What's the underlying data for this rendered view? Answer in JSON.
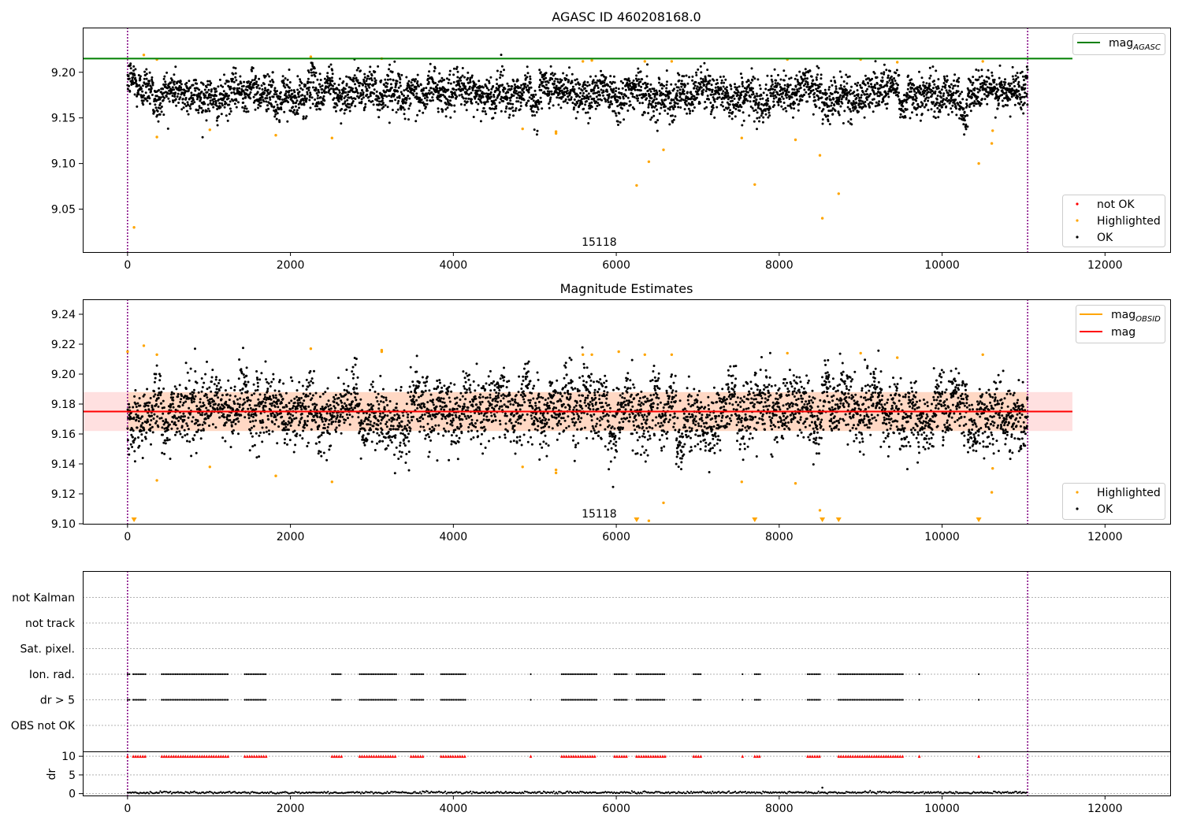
{
  "chart_data": [
    {
      "type": "scatter",
      "title": "AGASC ID 460208168.0",
      "xlim": [
        -550,
        12800
      ],
      "ylim": [
        9.003,
        9.249
      ],
      "xticks": [
        0,
        2000,
        4000,
        6000,
        8000,
        10000,
        12000
      ],
      "yticks": [
        9.05,
        9.1,
        9.15,
        9.2
      ],
      "ytick_labels": [
        "9.05",
        "9.10",
        "9.15",
        "9.20"
      ],
      "obsid_boundaries": [
        0,
        11050
      ],
      "obsid_label": {
        "text": "15118",
        "x": 5500
      },
      "reference_lines": [
        {
          "name": "mag",
          "name_sub": "AGASC",
          "value": 9.215,
          "x_range": [
            -550,
            11600
          ],
          "color": "#008000"
        }
      ],
      "series": [
        {
          "name": "not OK",
          "color": "#ff0000",
          "points": []
        },
        {
          "name": "Highlighted",
          "color": "#ffa500",
          "points": [
            [
              80,
              9.03
            ],
            [
              200,
              9.219
            ],
            [
              360,
              9.129
            ],
            [
              360,
              9.214
            ],
            [
              1010,
              9.137
            ],
            [
              1820,
              9.131
            ],
            [
              2250,
              9.217
            ],
            [
              2510,
              9.128
            ],
            [
              3120,
              9.215
            ],
            [
              4850,
              9.138
            ],
            [
              5260,
              9.133
            ],
            [
              5260,
              9.135
            ],
            [
              5590,
              9.212
            ],
            [
              5700,
              9.213
            ],
            [
              6250,
              9.076
            ],
            [
              6350,
              9.212
            ],
            [
              6400,
              9.102
            ],
            [
              6580,
              9.115
            ],
            [
              6680,
              9.212
            ],
            [
              7540,
              9.128
            ],
            [
              7700,
              9.077
            ],
            [
              8100,
              9.214
            ],
            [
              8200,
              9.126
            ],
            [
              8500,
              9.109
            ],
            [
              8530,
              9.04
            ],
            [
              8730,
              9.067
            ],
            [
              9000,
              9.214
            ],
            [
              9450,
              9.211
            ],
            [
              10450,
              9.1
            ],
            [
              10500,
              9.212
            ],
            [
              10610,
              9.122
            ],
            [
              10620,
              9.136
            ]
          ]
        }
      ],
      "ok_series": {
        "name": "OK",
        "color": "#000000",
        "count": 4200,
        "center": 9.176,
        "spread": 0.014,
        "x_range": [
          0,
          11050
        ]
      },
      "legends": [
        {
          "position": "upper right",
          "entries": [
            {
              "label": "mag",
              "sub": "AGASC",
              "kind": "line",
              "color": "#008000"
            }
          ]
        },
        {
          "position": "lower right",
          "entries": [
            {
              "label": "not OK",
              "kind": "marker",
              "color": "#ff0000"
            },
            {
              "label": "Highlighted",
              "kind": "marker",
              "color": "#ffa500"
            },
            {
              "label": "OK",
              "kind": "marker",
              "color": "#000000"
            }
          ]
        }
      ]
    },
    {
      "type": "scatter",
      "title": "Magnitude Estimates",
      "xlim": [
        -550,
        12800
      ],
      "ylim": [
        9.1,
        9.25
      ],
      "xticks": [
        0,
        2000,
        4000,
        6000,
        8000,
        10000,
        12000
      ],
      "yticks": [
        9.1,
        9.12,
        9.14,
        9.16,
        9.18,
        9.2,
        9.22,
        9.24
      ],
      "ytick_labels": [
        "9.10",
        "9.12",
        "9.14",
        "9.16",
        "9.18",
        "9.20",
        "9.22",
        "9.24"
      ],
      "obsid_boundaries": [
        0,
        11050
      ],
      "obsid_label": {
        "text": "15118",
        "x": 5500
      },
      "reference_lines": [
        {
          "name": "mag",
          "name_sub": "OBSID",
          "value": 9.175,
          "x_range": [
            0,
            11050
          ],
          "color": "#ffa500"
        },
        {
          "name": "mag",
          "name_sub": "",
          "value": 9.175,
          "x_range": [
            -550,
            11600
          ],
          "color": "#ff0000"
        }
      ],
      "bands": [
        {
          "color": "#ff0000",
          "opacity": 0.12,
          "y_range": [
            9.162,
            9.188
          ],
          "x_range": [
            -550,
            11600
          ]
        },
        {
          "color": "#ffa500",
          "opacity": 0.12,
          "y_range": [
            9.162,
            9.188
          ],
          "x_range": [
            0,
            11050
          ]
        }
      ],
      "series": [
        {
          "name": "Highlighted",
          "color": "#ffa500",
          "points": [
            [
              0,
              9.215
            ],
            [
              200,
              9.219
            ],
            [
              360,
              9.129
            ],
            [
              360,
              9.213
            ],
            [
              1010,
              9.138
            ],
            [
              1820,
              9.132
            ],
            [
              2250,
              9.217
            ],
            [
              2510,
              9.128
            ],
            [
              3120,
              9.215
            ],
            [
              3120,
              9.216
            ],
            [
              4850,
              9.138
            ],
            [
              5260,
              9.134
            ],
            [
              5260,
              9.136
            ],
            [
              5590,
              9.213
            ],
            [
              5700,
              9.213
            ],
            [
              6030,
              9.215
            ],
            [
              6350,
              9.213
            ],
            [
              6400,
              9.102
            ],
            [
              6580,
              9.114
            ],
            [
              6680,
              9.213
            ],
            [
              7540,
              9.128
            ],
            [
              8100,
              9.214
            ],
            [
              8200,
              9.127
            ],
            [
              8500,
              9.109
            ],
            [
              9000,
              9.214
            ],
            [
              9450,
              9.211
            ],
            [
              10500,
              9.213
            ],
            [
              10610,
              9.121
            ],
            [
              10620,
              9.137
            ]
          ]
        },
        {
          "name": "out of range (below axis)",
          "color": "#ffa500",
          "markers": "triangle-down",
          "x": [
            80,
            6250,
            7700,
            8530,
            8730,
            10450
          ]
        }
      ],
      "ok_series": {
        "name": "OK",
        "color": "#000000",
        "count": 4200,
        "center": 9.176,
        "spread": 0.014,
        "x_range": [
          0,
          11050
        ]
      },
      "legends": [
        {
          "position": "upper right",
          "entries": [
            {
              "label": "mag",
              "sub": "OBSID",
              "kind": "line",
              "color": "#ffa500"
            },
            {
              "label": "mag",
              "sub": "",
              "kind": "line",
              "color": "#ff0000"
            }
          ]
        },
        {
          "position": "lower right",
          "entries": [
            {
              "label": "Highlighted",
              "kind": "marker",
              "color": "#ffa500"
            },
            {
              "label": "OK",
              "kind": "marker",
              "color": "#000000"
            }
          ]
        }
      ]
    },
    {
      "type": "scatter",
      "title": "",
      "xlim": [
        -550,
        12800
      ],
      "xticks": [
        0,
        2000,
        4000,
        6000,
        8000,
        10000,
        12000
      ],
      "obsid_boundaries": [
        0,
        11050
      ],
      "categories": [
        "not Kalman",
        "not track",
        "Sat. pixel.",
        "Ion. rad.",
        "dr > 5",
        "OBS not OK"
      ],
      "flag_segments": {
        "Ion. rad.": [
          [
            0,
            25
          ],
          [
            70,
            230
          ],
          [
            420,
            1240
          ],
          [
            1440,
            1710
          ],
          [
            2510,
            2630
          ],
          [
            2850,
            3300
          ],
          [
            3480,
            3650
          ],
          [
            3850,
            4150
          ],
          [
            4950,
            4960
          ],
          [
            5330,
            5760
          ],
          [
            5980,
            6150
          ],
          [
            6250,
            6600
          ],
          [
            6950,
            7040
          ],
          [
            7550,
            7560
          ],
          [
            7700,
            7780
          ],
          [
            8350,
            8500
          ],
          [
            8730,
            9520
          ],
          [
            9720,
            9730
          ],
          [
            10450,
            10460
          ]
        ],
        "dr > 5": [
          [
            0,
            25
          ],
          [
            70,
            230
          ],
          [
            420,
            1240
          ],
          [
            1440,
            1710
          ],
          [
            2510,
            2630
          ],
          [
            2850,
            3300
          ],
          [
            3480,
            3650
          ],
          [
            3850,
            4150
          ],
          [
            4950,
            4960
          ],
          [
            5330,
            5760
          ],
          [
            5980,
            6150
          ],
          [
            6250,
            6600
          ],
          [
            6950,
            7040
          ],
          [
            7550,
            7560
          ],
          [
            7700,
            7780
          ],
          [
            8350,
            8500
          ],
          [
            8730,
            9520
          ],
          [
            9720,
            9730
          ],
          [
            10450,
            10460
          ]
        ]
      },
      "dr_panel": {
        "ylabel": "dr",
        "ylim": [
          -0.5,
          11.3
        ],
        "yticks": [
          0,
          5,
          10
        ],
        "ytick_labels": [
          "0",
          "5",
          "10"
        ],
        "clip_value": 10,
        "clip_color": "#ff0000",
        "baseline_value": 0.3,
        "outliers": [
          [
            8530,
            1.6
          ]
        ]
      }
    }
  ]
}
